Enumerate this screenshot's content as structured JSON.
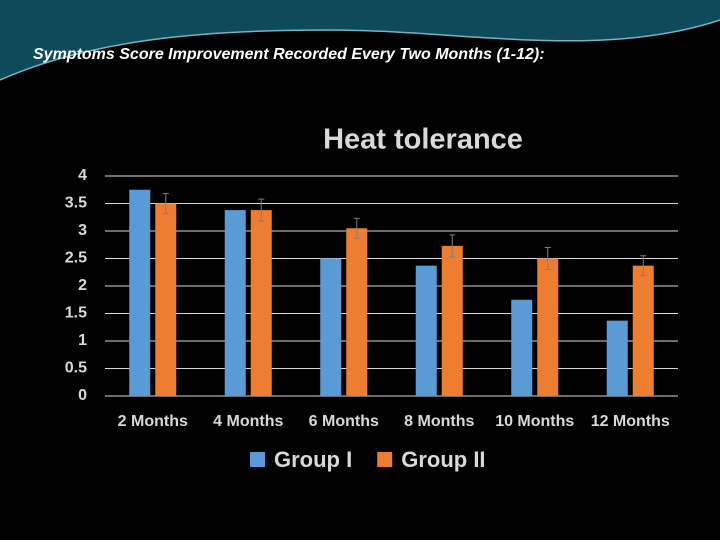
{
  "slide_title": "Symptoms Score Improvement Recorded Every Two Months (1-12):",
  "chart_data": {
    "type": "bar",
    "title": "Heat tolerance",
    "categories": [
      "2 Months",
      "4 Months",
      "6 Months",
      "8 Months",
      "10 Months",
      "12 Months"
    ],
    "series": [
      {
        "name": "Group I",
        "color": "#5b9bd5",
        "values": [
          3.75,
          3.38,
          2.5,
          2.37,
          1.75,
          1.37
        ]
      },
      {
        "name": "Group II",
        "color": "#ed7d31",
        "values": [
          3.5,
          3.38,
          3.05,
          2.73,
          2.5,
          2.37
        ],
        "errors": [
          0.18,
          0.2,
          0.18,
          0.2,
          0.2,
          0.18
        ]
      }
    ],
    "ylim": [
      0,
      4
    ],
    "yticks": [
      0,
      0.5,
      1,
      1.5,
      2,
      2.5,
      3,
      3.5,
      4
    ],
    "grid": true,
    "legend": "bottom"
  }
}
